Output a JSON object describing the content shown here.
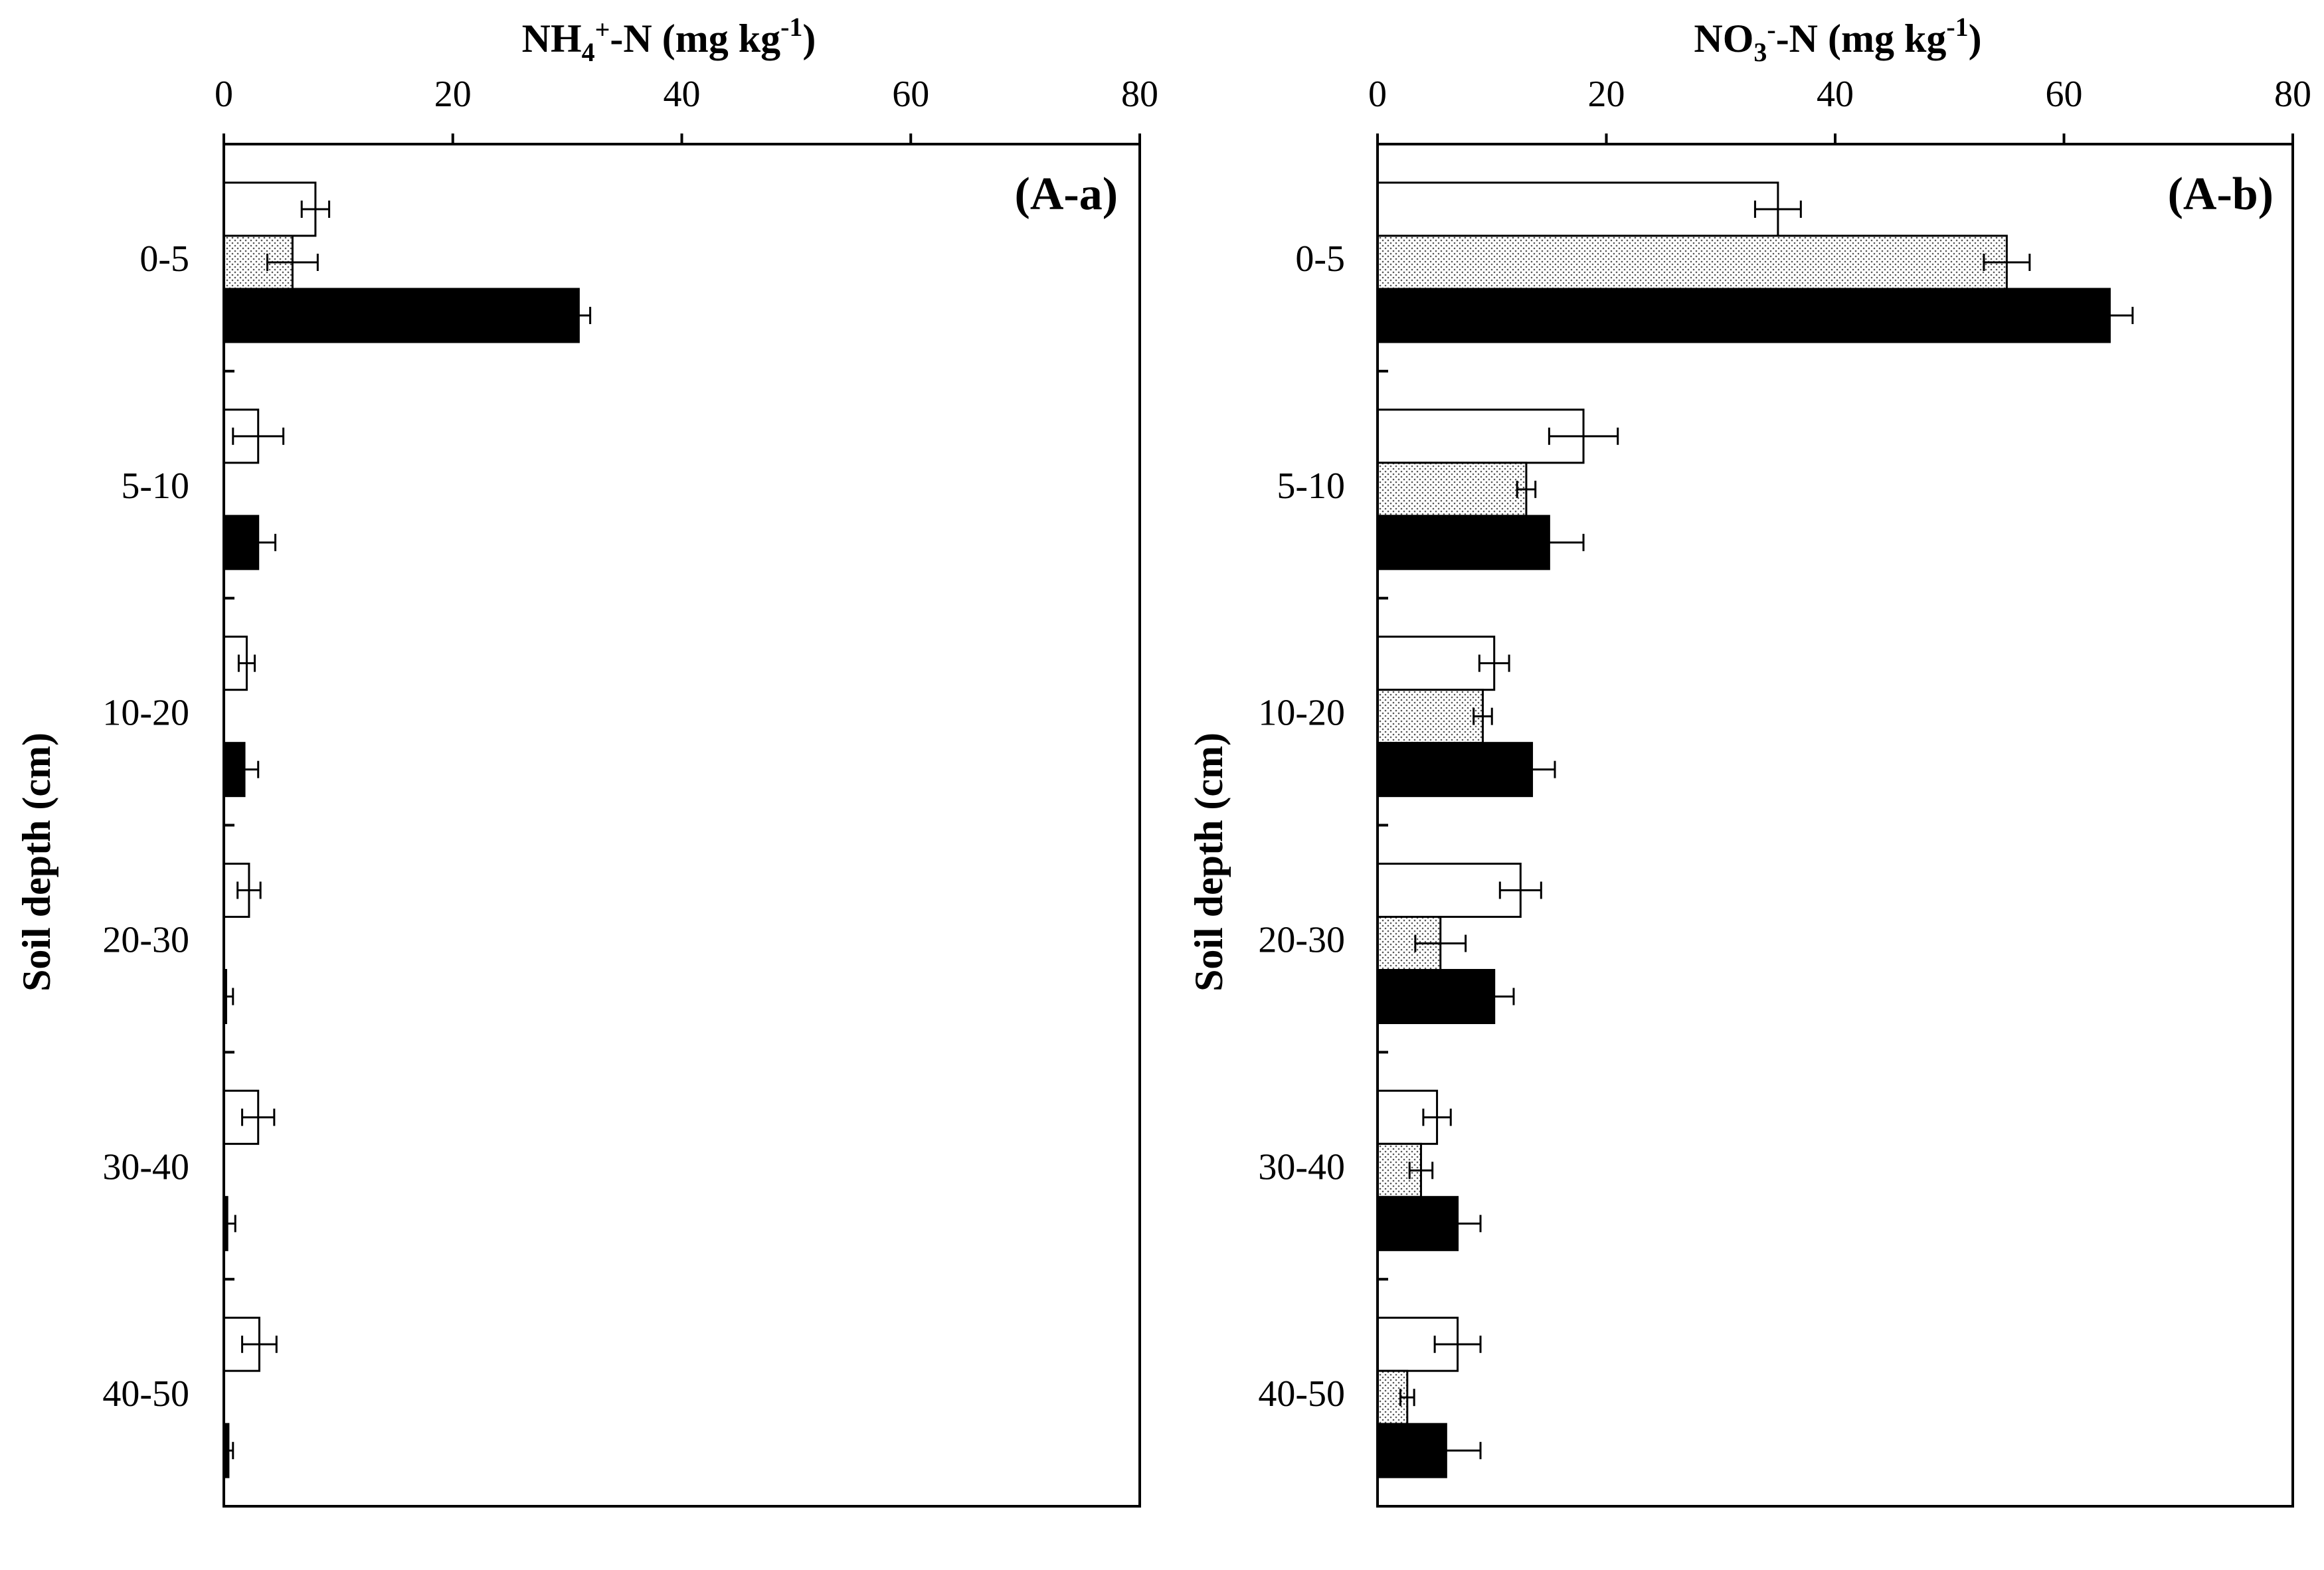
{
  "chart_data": [
    {
      "type": "bar",
      "orientation": "horizontal",
      "panel_label": "(A-a)",
      "title": {
        "base": "NH",
        "sub": "4",
        "sup": "+",
        "rest": "-N (mg kg",
        "sup2": "-1",
        "end": ")"
      },
      "ylabel": "Soil depth (cm)",
      "categories": [
        "0-5",
        "5-10",
        "10-20",
        "20-30",
        "30-40",
        "40-50"
      ],
      "xlim": [
        0,
        80
      ],
      "xticks": [
        "0",
        "20",
        "40",
        "60",
        "80"
      ],
      "series": [
        {
          "name": "open",
          "fill": "#ffffff",
          "values": [
            8,
            3,
            2,
            2.2,
            3,
            3.1
          ],
          "errors": [
            1.2,
            2.2,
            0.7,
            1,
            1.4,
            1.5
          ]
        },
        {
          "name": "dotted",
          "fill": "pattern",
          "values": [
            6,
            0,
            0,
            0,
            0,
            0
          ],
          "errors": [
            2.2,
            0,
            0,
            0,
            0,
            0
          ]
        },
        {
          "name": "solid",
          "fill": "#000000",
          "values": [
            31,
            3,
            1.8,
            0.2,
            0.3,
            0.4
          ],
          "errors": [
            1,
            1.5,
            1.2,
            0.6,
            0.7,
            0.4
          ]
        }
      ]
    },
    {
      "type": "bar",
      "orientation": "horizontal",
      "panel_label": "(A-b)",
      "title": {
        "base": "NO",
        "sub": "3",
        "sup": "-",
        "rest": "-N (mg kg",
        "sup2": "-1",
        "end": ")"
      },
      "ylabel": "Soil depth (cm)",
      "categories": [
        "0-5",
        "5-10",
        "10-20",
        "20-30",
        "30-40",
        "40-50"
      ],
      "xlim": [
        0,
        80
      ],
      "xticks": [
        "0",
        "20",
        "40",
        "60",
        "80"
      ],
      "series": [
        {
          "name": "open",
          "fill": "#ffffff",
          "values": [
            35,
            18,
            10.2,
            12.5,
            5.2,
            7
          ],
          "errors": [
            2,
            3,
            1.3,
            1.8,
            1.2,
            2
          ]
        },
        {
          "name": "dotted",
          "fill": "pattern",
          "values": [
            55,
            13,
            9.2,
            5.5,
            3.8,
            2.6
          ],
          "errors": [
            2,
            0.8,
            0.8,
            2.2,
            1,
            0.6
          ]
        },
        {
          "name": "solid",
          "fill": "#000000",
          "values": [
            64,
            15,
            13.5,
            10.2,
            7,
            6
          ],
          "errors": [
            2,
            3,
            2,
            1.7,
            2,
            3
          ]
        }
      ]
    }
  ]
}
